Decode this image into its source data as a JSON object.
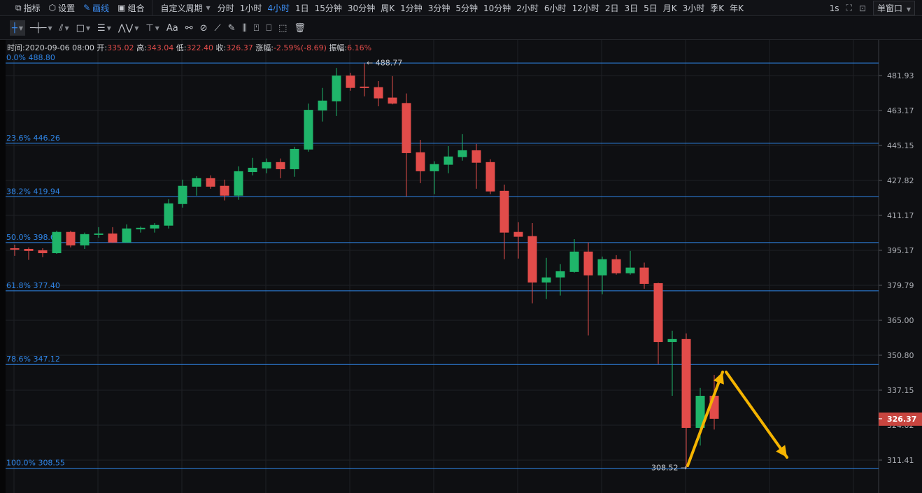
{
  "toolbar": {
    "tools": [
      {
        "label": "指标",
        "icon": "indicator-icon"
      },
      {
        "label": "设置",
        "icon": "gear-icon"
      },
      {
        "label": "画线",
        "icon": "pencil-icon",
        "active": true
      },
      {
        "label": "组合",
        "icon": "layout-icon"
      }
    ],
    "custom_period": "自定义周期",
    "periods": [
      "分时",
      "1小时",
      "4小时",
      "1日",
      "15分钟",
      "30分钟",
      "周K",
      "1分钟",
      "3分钟",
      "5分钟",
      "10分钟",
      "2小时",
      "6小时",
      "12小时",
      "2日",
      "3日",
      "5日",
      "月K",
      "3小时",
      "季K",
      "年K"
    ],
    "active_period": "4小时",
    "refresh": "1s",
    "window_mode": "单窗口"
  },
  "drawing_tools": [
    {
      "name": "crosshair",
      "glyph": "┼",
      "dropdown": true,
      "active": true
    },
    {
      "name": "horizontal-line",
      "glyph": "─┼─",
      "dropdown": true
    },
    {
      "name": "trend-line",
      "glyph": "⫽",
      "dropdown": true
    },
    {
      "name": "rectangle",
      "glyph": "□",
      "dropdown": true
    },
    {
      "name": "parallel-lines",
      "glyph": "☰",
      "dropdown": true
    },
    {
      "name": "wave",
      "glyph": "⋀⋁",
      "dropdown": true
    },
    {
      "name": "measure",
      "glyph": "⊤",
      "dropdown": true
    },
    {
      "name": "text",
      "glyph": "Aa"
    },
    {
      "name": "magnet",
      "glyph": "⚯"
    },
    {
      "name": "link",
      "glyph": "⊘"
    },
    {
      "name": "ruler",
      "glyph": "⟋"
    },
    {
      "name": "brush",
      "glyph": "✎"
    },
    {
      "name": "settings-bars",
      "glyph": "⫼"
    },
    {
      "name": "lock",
      "glyph": "⍞"
    },
    {
      "name": "bookmark",
      "glyph": "⎕"
    },
    {
      "name": "hide",
      "glyph": "⬚"
    },
    {
      "name": "trash",
      "glyph": "🗑"
    }
  ],
  "info": {
    "time_label": "时间:",
    "time": "2020-09-06 08:00",
    "open_label": "开:",
    "open": "335.02",
    "high_label": "高:",
    "high": "343.04",
    "low_label": "低:",
    "low": "322.40",
    "close_label": "收:",
    "close": "326.37",
    "change_label": "涨幅:",
    "change": "-2.59%(-8.69)",
    "amp_label": "振幅:",
    "amp": "6.16%"
  },
  "colors": {
    "up": "#1fb56a",
    "down": "#e24c4a",
    "fib": "#2f86e8",
    "arrow": "#f5b400",
    "bg": "#0e0f12"
  },
  "chart_data": {
    "type": "candlestick",
    "y_scale": "log",
    "price_axis": [
      "481.93",
      "463.17",
      "445.15",
      "427.82",
      "411.17",
      "395.17",
      "379.79",
      "365.00",
      "350.80",
      "337.15",
      "324.02",
      "311.41"
    ],
    "last_price": "326.37",
    "high_marker": "488.77",
    "low_marker": "308.52",
    "fibonacci": [
      {
        "level": "0.0%",
        "price": "488.80"
      },
      {
        "level": "23.6%",
        "price": "446.26"
      },
      {
        "level": "38.2%",
        "price": "419.94"
      },
      {
        "level": "50.0%",
        "price": "398.67"
      },
      {
        "level": "61.8%",
        "price": "377.40"
      },
      {
        "level": "78.6%",
        "price": "347.12"
      },
      {
        "level": "100.0%",
        "price": "308.55"
      }
    ],
    "candles": [
      [
        396.1,
        397.7,
        392.7,
        395.5
      ],
      [
        395.8,
        396.5,
        390.9,
        394.9
      ],
      [
        395.2,
        396.1,
        392.1,
        393.9
      ],
      [
        393.9,
        404.1,
        393.6,
        403.5
      ],
      [
        403.5,
        404.1,
        396.5,
        397.4
      ],
      [
        397.4,
        403.2,
        395.8,
        402.5
      ],
      [
        402.5,
        405.7,
        400.9,
        402.8
      ],
      [
        402.8,
        405.7,
        398.5,
        398.7
      ],
      [
        398.7,
        407.0,
        398.5,
        405.1
      ],
      [
        404.8,
        406.0,
        403.2,
        405.4
      ],
      [
        405.1,
        407.6,
        403.2,
        406.7
      ],
      [
        406.4,
        418.8,
        405.1,
        416.8
      ],
      [
        416.5,
        428.2,
        414.8,
        425.2
      ],
      [
        424.8,
        429.9,
        420.5,
        428.9
      ],
      [
        428.9,
        430.3,
        423.8,
        424.8
      ],
      [
        425.2,
        428.2,
        418.2,
        420.5
      ],
      [
        420.5,
        434.7,
        418.5,
        432.3
      ],
      [
        431.9,
        438.9,
        430.3,
        434.0
      ],
      [
        433.7,
        438.6,
        431.3,
        436.8
      ],
      [
        436.8,
        438.6,
        428.9,
        433.3
      ],
      [
        433.3,
        444.5,
        429.6,
        443.4
      ],
      [
        443.1,
        466.8,
        442.0,
        463.5
      ],
      [
        463.2,
        475.2,
        457.4,
        468.4
      ],
      [
        468.0,
        486.1,
        460.3,
        481.9
      ],
      [
        481.9,
        483.4,
        473.7,
        475.2
      ],
      [
        475.9,
        488.77,
        470.7,
        475.2
      ],
      [
        475.6,
        478.9,
        465.4,
        469.6
      ],
      [
        470.0,
        481.6,
        466.4,
        466.8
      ],
      [
        467.1,
        472.2,
        420.2,
        441.3
      ],
      [
        441.7,
        448.0,
        426.5,
        432.3
      ],
      [
        432.3,
        437.2,
        421.2,
        435.8
      ],
      [
        435.5,
        444.8,
        431.3,
        439.6
      ],
      [
        439.3,
        450.9,
        437.5,
        442.7
      ],
      [
        442.7,
        445.9,
        423.8,
        436.5
      ],
      [
        436.8,
        438.2,
        421.2,
        422.5
      ],
      [
        422.8,
        425.8,
        391.2,
        403.2
      ],
      [
        403.5,
        408.0,
        391.5,
        401.3
      ],
      [
        401.6,
        407.6,
        372.1,
        381.0
      ],
      [
        381.0,
        391.8,
        373.9,
        383.2
      ],
      [
        383.2,
        389.0,
        375.4,
        385.9
      ],
      [
        385.6,
        400.2,
        385.3,
        394.6
      ],
      [
        394.6,
        398.7,
        358.8,
        384.1
      ],
      [
        384.1,
        392.4,
        375.9,
        391.2
      ],
      [
        391.2,
        393.0,
        384.4,
        385.0
      ],
      [
        385.0,
        394.9,
        384.4,
        387.5
      ],
      [
        387.5,
        389.7,
        378.3,
        380.4
      ],
      [
        380.7,
        380.9,
        347.3,
        356.1
      ],
      [
        356.1,
        360.7,
        335.0,
        357.3
      ],
      [
        357.3,
        359.6,
        308.52,
        323.0
      ],
      [
        323.0,
        338.0,
        316.6,
        335.0
      ],
      [
        335.02,
        343.04,
        322.4,
        326.37
      ]
    ],
    "annotations": [
      {
        "type": "arrow",
        "from": 349,
        "to": 308.52,
        "direction": "up"
      },
      {
        "type": "arrow",
        "direction": "down",
        "target": "311.41"
      }
    ]
  }
}
